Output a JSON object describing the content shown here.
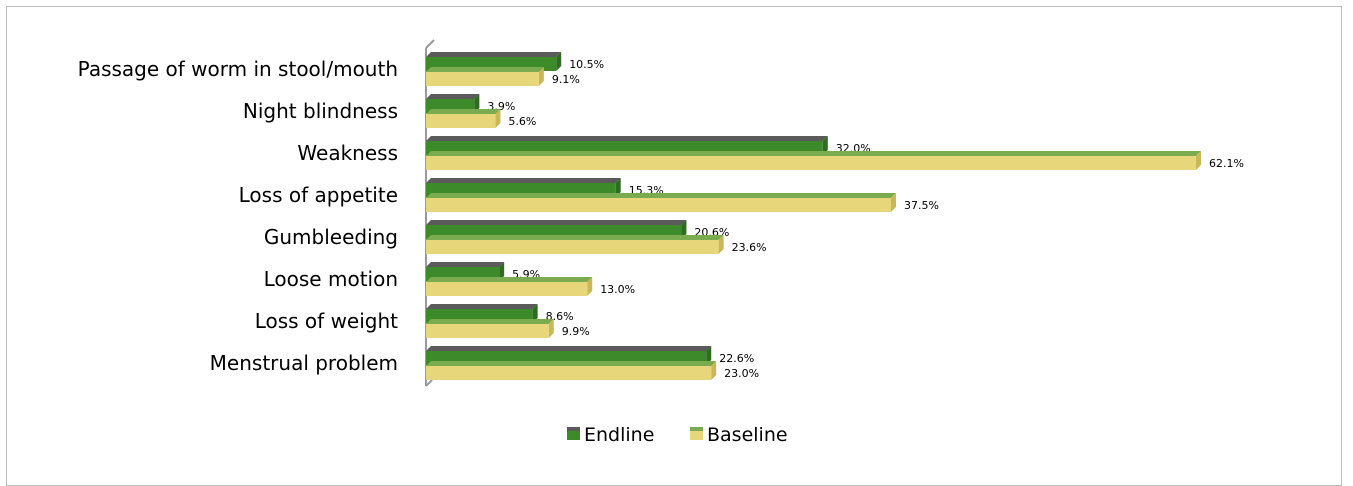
{
  "chart_data": {
    "type": "bar",
    "orientation": "horizontal",
    "categories": [
      "Passage of worm in stool/mouth",
      "Night blindness",
      "Weakness",
      "Loss of appetite",
      "Gumbleeding",
      "Loose motion",
      "Loss of weight",
      "Menstrual problem"
    ],
    "series": [
      {
        "name": "Endline",
        "values": [
          10.5,
          3.9,
          32.0,
          15.3,
          20.6,
          5.9,
          8.6,
          22.6
        ],
        "labels": [
          "10.5%",
          "3.9%",
          "32.0%",
          "15.3%",
          "20.6%",
          "5.9%",
          "8.6%",
          "22.6%"
        ],
        "color": "#3c8a2a",
        "top_color": "#5b5b5b"
      },
      {
        "name": "Baseline",
        "values": [
          9.1,
          5.6,
          62.1,
          37.5,
          23.6,
          13.0,
          9.9,
          23.0
        ],
        "labels": [
          "9.1%",
          "5.6%",
          "62.1%",
          "37.5%",
          "23.6%",
          "13.0%",
          "9.9%",
          "23.0%"
        ],
        "color": "#e8d77a",
        "top_color": "#7aab4e"
      }
    ],
    "xlim": [
      0,
      62.1
    ],
    "grid": false,
    "legend_position": "bottom"
  }
}
